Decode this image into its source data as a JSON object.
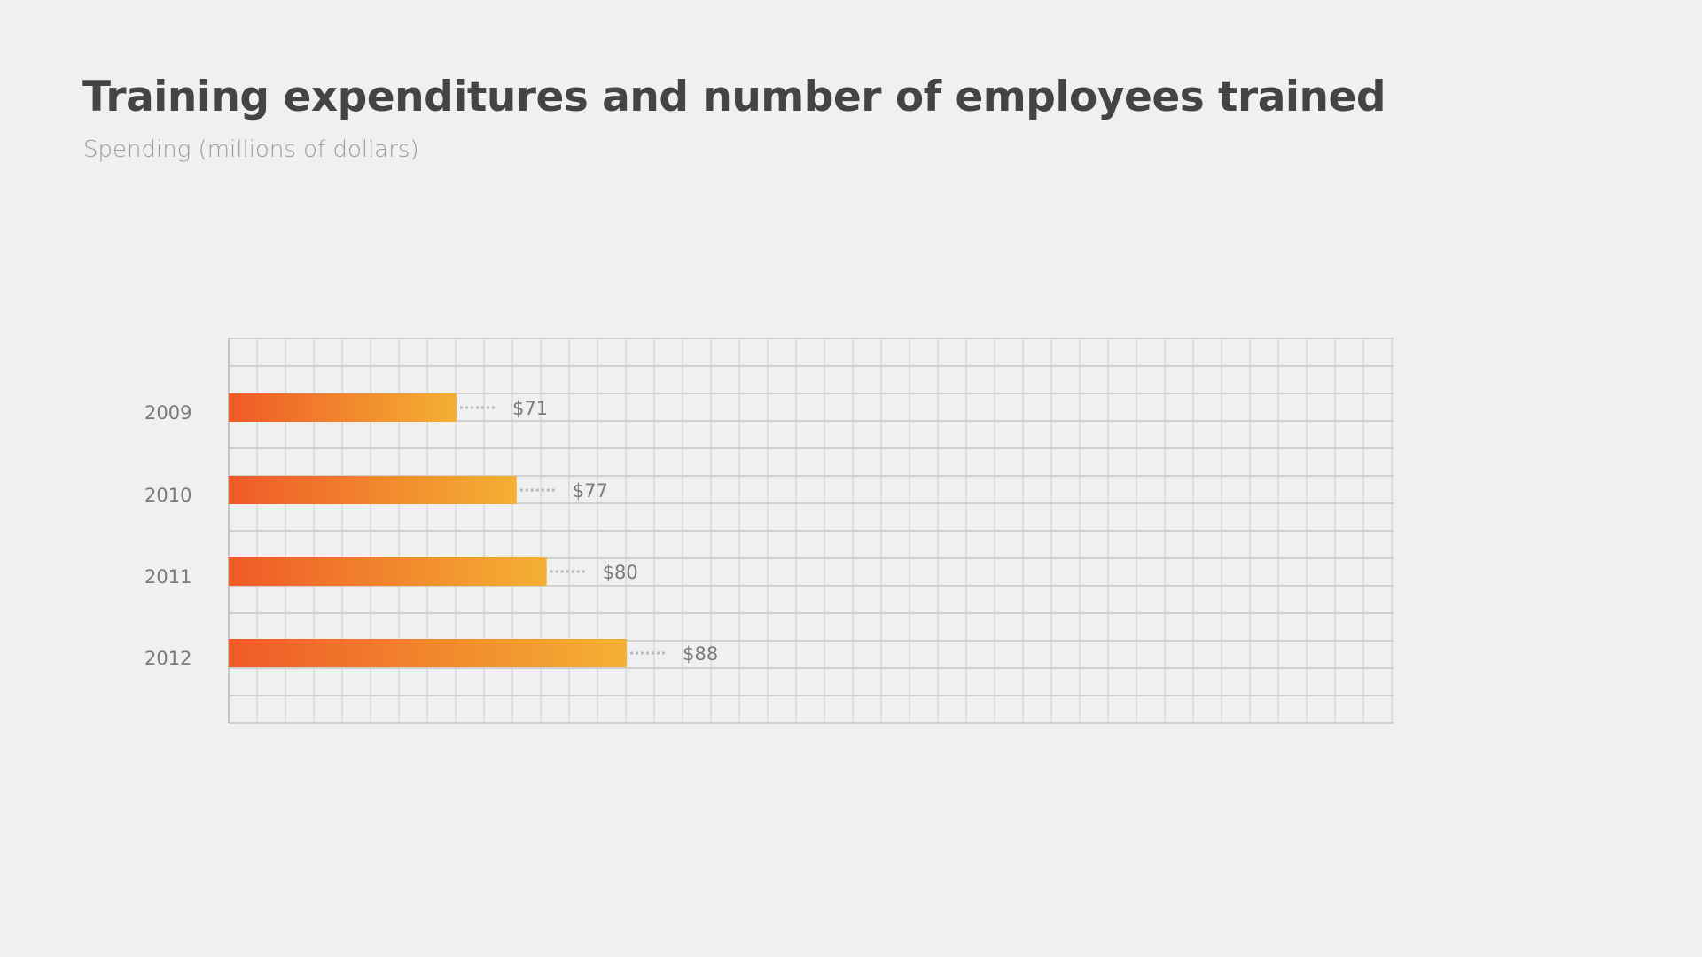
{
  "chart_data": {
    "type": "bar",
    "orientation": "horizontal",
    "title": "Training expenditures and number of employees trained",
    "subtitle": "Spending (millions of dollars)",
    "categories": [
      "2009",
      "2010",
      "2011",
      "2012"
    ],
    "values": [
      71,
      77,
      80,
      88
    ],
    "value_labels": [
      "$71",
      "$77",
      "$80",
      "$88"
    ],
    "grid": true,
    "colors": {
      "bar_start": "#ef5a27",
      "bar_end": "#f4b033"
    }
  }
}
